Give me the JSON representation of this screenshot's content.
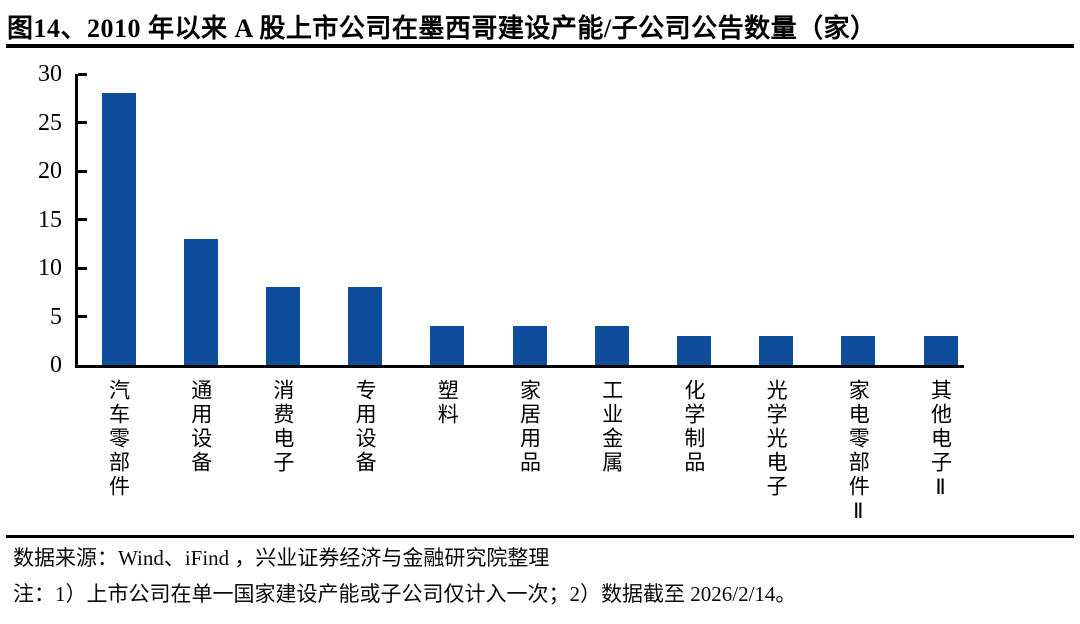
{
  "title": "图14、2010 年以来 A 股上市公司在墨西哥建设产能/子公司公告数量（家）",
  "chart_data": {
    "type": "bar",
    "title": "2010 年以来 A 股上市公司在墨西哥建设产能/子公司公告数量（家）",
    "categories": [
      "汽车零部件",
      "通用设备",
      "消费电子",
      "专用设备",
      "塑料",
      "家居用品",
      "工业金属",
      "化学制品",
      "光学光电子",
      "家电零部件Ⅱ",
      "其他电子Ⅱ"
    ],
    "values": [
      28,
      13,
      8,
      8,
      4,
      4,
      4,
      3,
      3,
      3,
      3
    ],
    "xlabel": "",
    "ylabel": "",
    "ylim": [
      0,
      30
    ],
    "yticks": [
      0,
      5,
      10,
      15,
      20,
      25,
      30
    ],
    "grid": false,
    "legend_position": "none",
    "bar_color": "#0D4D99",
    "axis_color": "#000000"
  },
  "footer": {
    "source": "数据来源：Wind、iFind ，兴业证券经济与金融研究院整理",
    "note": "注：1）上市公司在单一国家建设产能或子公司仅计入一次；2）数据截至 2026/2/14。"
  },
  "colors": {
    "bar": "#0D4D99",
    "axis": "#000000",
    "title_text": "#000000",
    "footer_text": "#0a0a0a",
    "background": "#ffffff"
  }
}
